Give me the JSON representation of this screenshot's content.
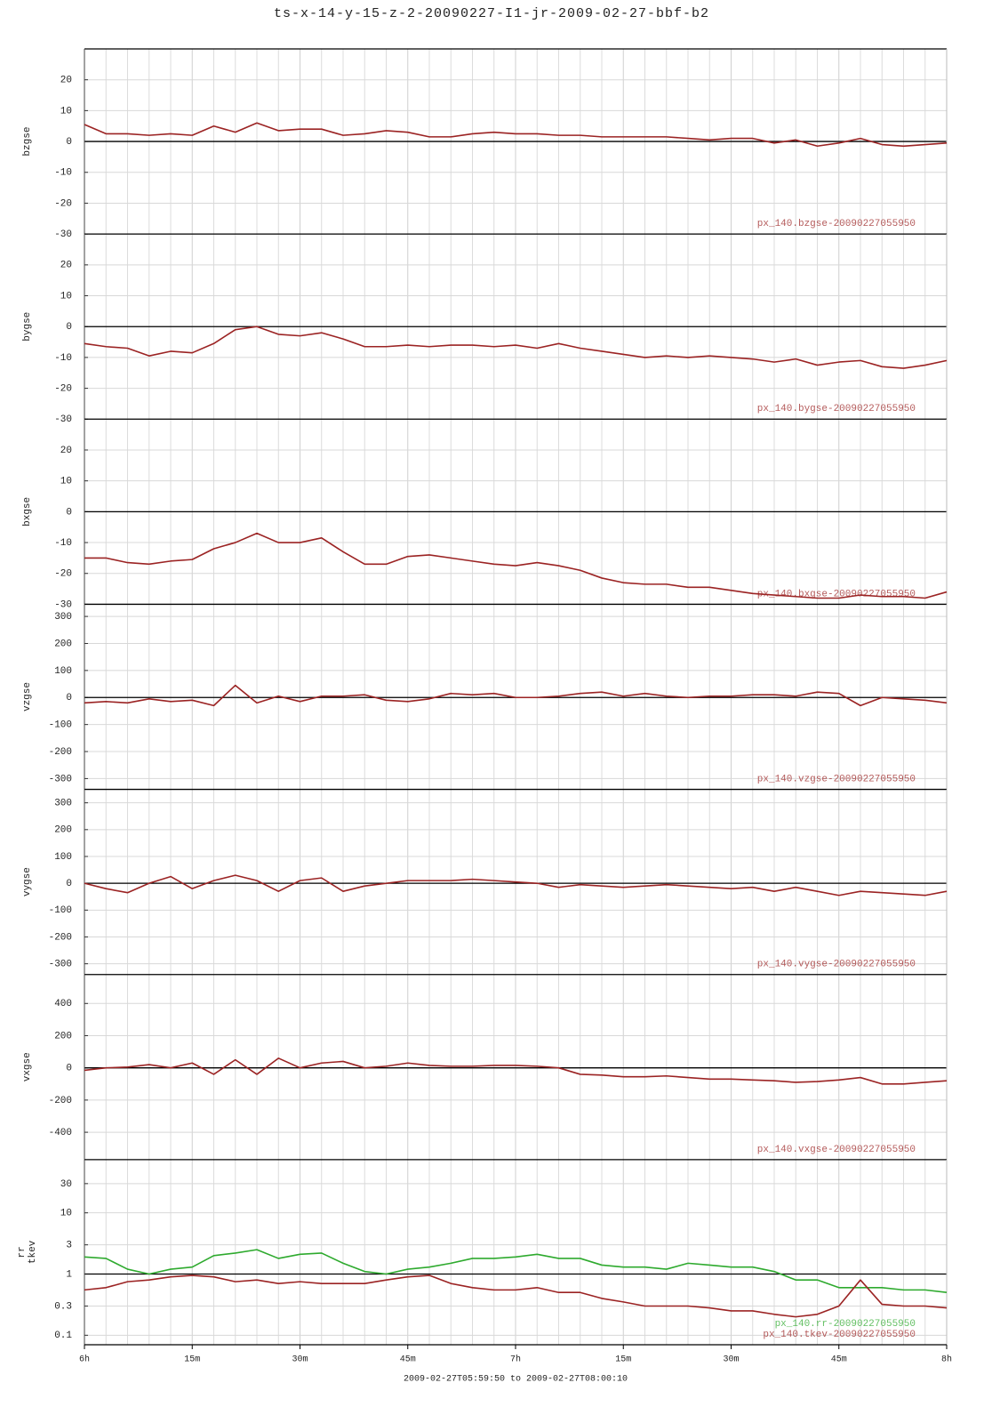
{
  "title": "ts-x-14-y-15-z-2-20090227-I1-jr-2009-02-27-bbf-b2",
  "chart_data": [
    {
      "type": "line",
      "ylabel": "bzgse",
      "grid": true,
      "hline": 0,
      "x": [
        0,
        3,
        6,
        9,
        12,
        15,
        18,
        21,
        24,
        27,
        30,
        33,
        36,
        39,
        42,
        45,
        48,
        51,
        54,
        57,
        60,
        63,
        66,
        69,
        72,
        75,
        78,
        81,
        84,
        87,
        90,
        93,
        96,
        99,
        102,
        105,
        108,
        111,
        114,
        117,
        120
      ],
      "xlim": [
        0,
        120
      ],
      "ylim": [
        -30,
        30
      ],
      "yticks": [
        20,
        10,
        0,
        -10,
        -20,
        -30
      ],
      "series": [
        {
          "name": "px_140.bzgse-20090227055950",
          "color": "#9b2323",
          "values": [
            5.5,
            2.5,
            2.5,
            2,
            2.5,
            2,
            5,
            3,
            6,
            3.5,
            4,
            4,
            2,
            2.5,
            3.5,
            3,
            1.5,
            1.5,
            2.5,
            3,
            2.5,
            2.5,
            2,
            2,
            1.5,
            1.5,
            1.5,
            1.5,
            1,
            0.5,
            1,
            1,
            -0.5,
            0.5,
            -1.5,
            -0.5,
            1,
            -1,
            -1.5,
            -1,
            -0.5
          ]
        }
      ]
    },
    {
      "type": "line",
      "ylabel": "bygse",
      "grid": true,
      "hline": 0,
      "x": [
        0,
        3,
        6,
        9,
        12,
        15,
        18,
        21,
        24,
        27,
        30,
        33,
        36,
        39,
        42,
        45,
        48,
        51,
        54,
        57,
        60,
        63,
        66,
        69,
        72,
        75,
        78,
        81,
        84,
        87,
        90,
        93,
        96,
        99,
        102,
        105,
        108,
        111,
        114,
        117,
        120
      ],
      "xlim": [
        0,
        120
      ],
      "ylim": [
        -30,
        30
      ],
      "yticks": [
        20,
        10,
        0,
        -10,
        -20,
        -30
      ],
      "series": [
        {
          "name": "px_140.bygse-20090227055950",
          "color": "#9b2323",
          "values": [
            -5.5,
            -6.5,
            -7,
            -9.5,
            -8,
            -8.5,
            -5.5,
            -1,
            0,
            -2.5,
            -3,
            -2,
            -4,
            -6.5,
            -6.5,
            -6,
            -6.5,
            -6,
            -6,
            -6.5,
            -6,
            -7,
            -5.5,
            -7,
            -8,
            -9,
            -10,
            -9.5,
            -10,
            -9.5,
            -10,
            -10.5,
            -11.5,
            -10.5,
            -12.5,
            -11.5,
            -11,
            -13,
            -13.5,
            -12.5,
            -11
          ]
        }
      ]
    },
    {
      "type": "line",
      "ylabel": "bxgse",
      "grid": true,
      "hline": 0,
      "x": [
        0,
        3,
        6,
        9,
        12,
        15,
        18,
        21,
        24,
        27,
        30,
        33,
        36,
        39,
        42,
        45,
        48,
        51,
        54,
        57,
        60,
        63,
        66,
        69,
        72,
        75,
        78,
        81,
        84,
        87,
        90,
        93,
        96,
        99,
        102,
        105,
        108,
        111,
        114,
        117,
        120
      ],
      "xlim": [
        0,
        120
      ],
      "ylim": [
        -30,
        30
      ],
      "yticks": [
        20,
        10,
        0,
        -10,
        -20,
        -30
      ],
      "series": [
        {
          "name": "px_140.bxgse-20090227055950",
          "color": "#9b2323",
          "values": [
            -15,
            -15,
            -16.5,
            -17,
            -16,
            -15.5,
            -12,
            -10,
            -7,
            -10,
            -10,
            -8.5,
            -13,
            -17,
            -17,
            -14.5,
            -14,
            -15,
            -16,
            -17,
            -17.5,
            -16.5,
            -17.5,
            -19,
            -21.5,
            -23,
            -23.5,
            -23.5,
            -24.5,
            -24.5,
            -25.5,
            -26.5,
            -27,
            -27.5,
            -28,
            -28,
            -27,
            -27.5,
            -27.5,
            -28,
            -26
          ]
        }
      ]
    },
    {
      "type": "line",
      "ylabel": "vzgse",
      "grid": true,
      "hline": 0,
      "x": [
        0,
        3,
        6,
        9,
        12,
        15,
        18,
        21,
        24,
        27,
        30,
        33,
        36,
        39,
        42,
        45,
        48,
        51,
        54,
        57,
        60,
        63,
        66,
        69,
        72,
        75,
        78,
        81,
        84,
        87,
        90,
        93,
        96,
        99,
        102,
        105,
        108,
        111,
        114,
        117,
        120
      ],
      "xlim": [
        0,
        120
      ],
      "ylim": [
        -340,
        345
      ],
      "yticks": [
        300,
        200,
        100,
        0,
        -100,
        -200,
        -300
      ],
      "series": [
        {
          "name": "px_140.vzgse-20090227055950",
          "color": "#9b2323",
          "values": [
            -20,
            -15,
            -20,
            -5,
            -15,
            -10,
            -30,
            45,
            -20,
            5,
            -15,
            5,
            5,
            10,
            -10,
            -15,
            -5,
            15,
            10,
            15,
            0,
            0,
            5,
            15,
            20,
            5,
            15,
            5,
            0,
            5,
            5,
            10,
            10,
            5,
            20,
            15,
            -30,
            0,
            -5,
            -10,
            -20
          ]
        }
      ]
    },
    {
      "type": "line",
      "ylabel": "vygse",
      "grid": true,
      "hline": 0,
      "x": [
        0,
        3,
        6,
        9,
        12,
        15,
        18,
        21,
        24,
        27,
        30,
        33,
        36,
        39,
        42,
        45,
        48,
        51,
        54,
        57,
        60,
        63,
        66,
        69,
        72,
        75,
        78,
        81,
        84,
        87,
        90,
        93,
        96,
        99,
        102,
        105,
        108,
        111,
        114,
        117,
        120
      ],
      "xlim": [
        0,
        120
      ],
      "ylim": [
        -340,
        350
      ],
      "yticks": [
        300,
        200,
        100,
        0,
        -100,
        -200,
        -300
      ],
      "series": [
        {
          "name": "px_140.vygse-20090227055950",
          "color": "#9b2323",
          "values": [
            0,
            -20,
            -35,
            0,
            25,
            -20,
            10,
            30,
            10,
            -30,
            10,
            20,
            -30,
            -10,
            0,
            10,
            10,
            10,
            15,
            10,
            5,
            0,
            -15,
            -5,
            -10,
            -15,
            -10,
            -5,
            -10,
            -15,
            -20,
            -15,
            -30,
            -15,
            -30,
            -45,
            -30,
            -35,
            -40,
            -45,
            -30
          ]
        }
      ]
    },
    {
      "type": "line",
      "ylabel": "vxgse",
      "grid": true,
      "hline": 0,
      "x": [
        0,
        3,
        6,
        9,
        12,
        15,
        18,
        21,
        24,
        27,
        30,
        33,
        36,
        39,
        42,
        45,
        48,
        51,
        54,
        57,
        60,
        63,
        66,
        69,
        72,
        75,
        78,
        81,
        84,
        87,
        90,
        93,
        96,
        99,
        102,
        105,
        108,
        111,
        114,
        117,
        120
      ],
      "xlim": [
        0,
        120
      ],
      "ylim": [
        -570,
        580
      ],
      "yticks": [
        400,
        200,
        0,
        -200,
        -400
      ],
      "series": [
        {
          "name": "px_140.vxgse-20090227055950",
          "color": "#9b2323",
          "values": [
            -15,
            0,
            5,
            20,
            0,
            30,
            -40,
            50,
            -40,
            60,
            0,
            30,
            40,
            0,
            10,
            30,
            15,
            10,
            10,
            15,
            15,
            10,
            0,
            -40,
            -45,
            -55,
            -55,
            -50,
            -60,
            -70,
            -70,
            -75,
            -80,
            -90,
            -85,
            -75,
            -60,
            -100,
            -100,
            -90,
            -80
          ]
        }
      ]
    },
    {
      "type": "line",
      "ylabel": [
        "rr",
        "tkev"
      ],
      "grid": true,
      "hline": 1,
      "yscale": "log",
      "x": [
        0,
        3,
        6,
        9,
        12,
        15,
        18,
        21,
        24,
        27,
        30,
        33,
        36,
        39,
        42,
        45,
        48,
        51,
        54,
        57,
        60,
        63,
        66,
        69,
        72,
        75,
        78,
        81,
        84,
        87,
        90,
        93,
        96,
        99,
        102,
        105,
        108,
        111,
        114,
        117,
        120
      ],
      "xlim": [
        0,
        120
      ],
      "ylim": [
        0.07,
        74
      ],
      "yticks": [
        30,
        10,
        3,
        1,
        0.3,
        0.1
      ],
      "xticks": [
        {
          "value": 0,
          "label": "6h"
        },
        {
          "value": 15,
          "label": "15m"
        },
        {
          "value": 30,
          "label": "30m"
        },
        {
          "value": 45,
          "label": "45m"
        },
        {
          "value": 60,
          "label": "7h"
        },
        {
          "value": 75,
          "label": "15m"
        },
        {
          "value": 90,
          "label": "30m"
        },
        {
          "value": 105,
          "label": "45m"
        },
        {
          "value": 120,
          "label": "8h"
        }
      ],
      "xlabel": "2009-02-27T05:59:50 to 2009-02-27T08:00:10",
      "series": [
        {
          "name": "px_140.rr-20090227055950",
          "color": "#2eaa2e",
          "values": [
            1.9,
            1.8,
            1.2,
            1.0,
            1.2,
            1.3,
            2.0,
            2.2,
            2.5,
            1.8,
            2.1,
            2.2,
            1.5,
            1.1,
            1.0,
            1.2,
            1.3,
            1.5,
            1.8,
            1.8,
            1.9,
            2.1,
            1.8,
            1.8,
            1.4,
            1.3,
            1.3,
            1.2,
            1.5,
            1.4,
            1.3,
            1.3,
            1.1,
            0.8,
            0.8,
            0.6,
            0.6,
            0.6,
            0.55,
            0.55,
            0.5
          ]
        },
        {
          "name": "px_140.tkev-20090227055950",
          "color": "#9b2323",
          "values": [
            0.55,
            0.6,
            0.75,
            0.8,
            0.9,
            0.95,
            0.9,
            0.75,
            0.8,
            0.7,
            0.75,
            0.7,
            0.7,
            0.7,
            0.8,
            0.9,
            0.95,
            0.7,
            0.6,
            0.55,
            0.55,
            0.6,
            0.5,
            0.5,
            0.4,
            0.35,
            0.3,
            0.3,
            0.3,
            0.28,
            0.25,
            0.25,
            0.22,
            0.2,
            0.22,
            0.3,
            0.8,
            0.32,
            0.3,
            0.3,
            0.28
          ]
        }
      ]
    }
  ]
}
